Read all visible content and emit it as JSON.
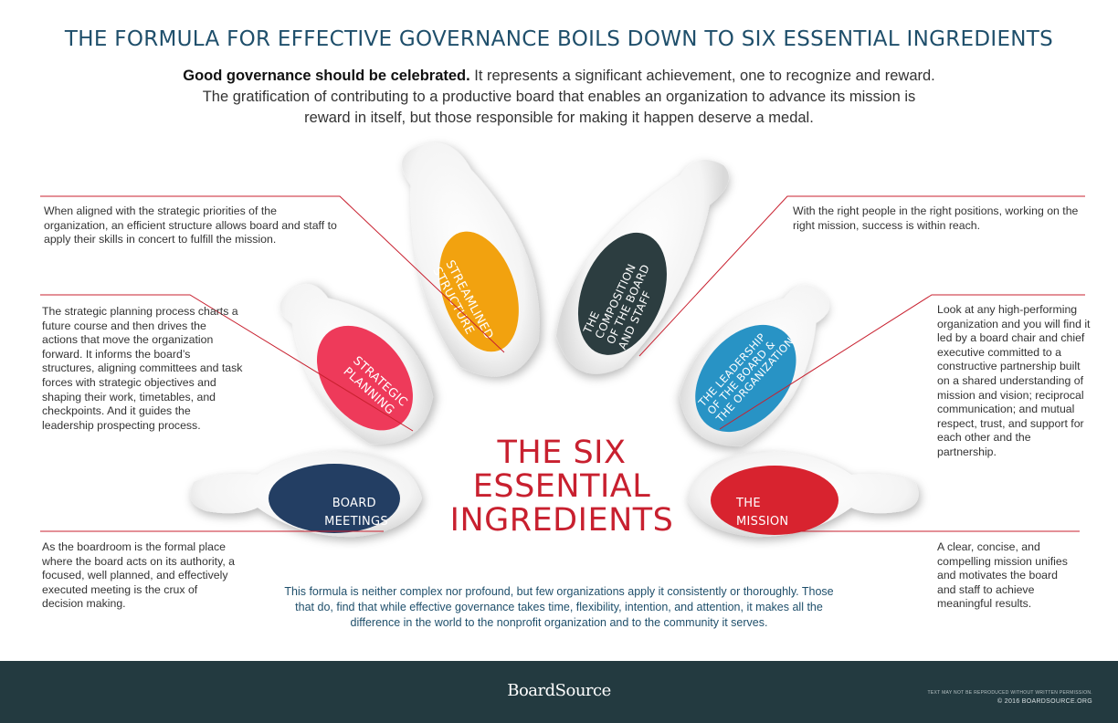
{
  "title": "THE FORMULA FOR EFFECTIVE GOVERNANCE BOILS DOWN TO SIX ESSENTIAL INGREDIENTS",
  "intro": {
    "lead": "Good governance should be celebrated.",
    "body": " It represents a significant achievement, one to recognize and reward. The gratification of contributing to a productive board that enables an organization to advance its mission is reward in itself, but those responsible for making it happen deserve a medal."
  },
  "center_title": {
    "line1": "THE SIX",
    "line2": "ESSENTIAL",
    "line3": "INGREDIENTS"
  },
  "ingredients": {
    "structure": {
      "label_lines": [
        "STREAMLINED",
        "STRUCTURE"
      ],
      "color": "#f2a20f",
      "description": "When aligned with the strategic priorities of the organization, an efficient structure allows board and staff to apply their skills in concert to fulfill the mission."
    },
    "composition": {
      "label_lines": [
        "THE",
        "COMPOSITION",
        "OF THE BOARD",
        "AND STAFF"
      ],
      "color": "#2c3d40",
      "description": "With the right people in the right positions, working on the right mission, success is within reach."
    },
    "planning": {
      "label_lines": [
        "STRATEGIC",
        "PLANNING"
      ],
      "color": "#ee3a5a",
      "description": "The strategic planning process charts a future course and then drives the actions that move the organization forward. It informs the board’s structures, aligning committees and task forces with strategic objectives and shaping their work, timetables, and checkpoints. And it guides the leadership prospecting process."
    },
    "leadership": {
      "label_lines": [
        "THE LEADERSHIP",
        "OF THE BOARD &",
        "THE ORGANIZATION"
      ],
      "color": "#2893c5",
      "description": "Look at any high-performing organization and you will find it led by a board chair and chief executive committed to a constructive partnership built on a shared understanding of mission and vision; reciprocal communication; and mutual respect, trust, and support for each other and the partnership."
    },
    "meetings": {
      "label_lines": [
        "BOARD",
        "MEETINGS"
      ],
      "color": "#233e63",
      "description": "As the boardroom is the formal place where the board acts on its authority, a focused, well planned, and effectively executed meeting is the crux of decision making."
    },
    "mission": {
      "label_lines": [
        "THE",
        "MISSION"
      ],
      "color": "#d8232f",
      "description": "A clear, concise, and compelling mission unifies and motivates the board and staff to achieve meaningful results."
    }
  },
  "bottom_note": "This formula is neither complex nor profound, but few organizations apply it consistently or thoroughly. Those that do, find that while effective governance takes time, flexibility, intention, and attention, it makes all the difference in the world to the nonprofit organization and to the community it serves.",
  "footer": {
    "brand": "BoardSource",
    "fine_print": "TEXT MAY NOT BE REPRODUCED WITHOUT WRITTEN PERMISSION.",
    "copyright": "© 2016 BOARDSOURCE.ORG"
  },
  "colors": {
    "accent_red": "#c8202f",
    "title_blue": "#1f4f6b",
    "footer_bg": "#233a40",
    "leader_line": "#c8202f"
  }
}
